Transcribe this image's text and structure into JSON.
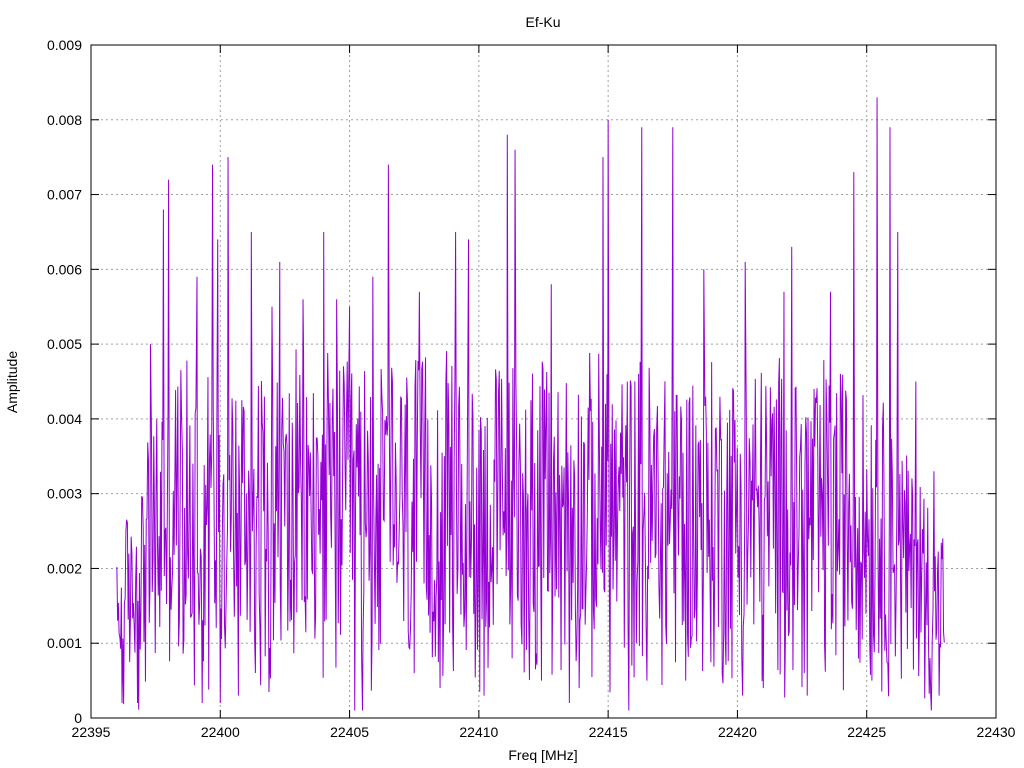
{
  "chart_data": {
    "type": "line",
    "title": "Ef-Ku",
    "xlabel": "Freq [MHz]",
    "ylabel": "Amplitude",
    "xlim": [
      22395,
      22430
    ],
    "ylim": [
      0,
      0.009
    ],
    "x_ticks": [
      "22395",
      "22400",
      "22405",
      "22410",
      "22415",
      "22420",
      "22425",
      "22430"
    ],
    "y_ticks": [
      "0",
      "0.001",
      "0.002",
      "0.003",
      "0.004",
      "0.005",
      "0.006",
      "0.007",
      "0.008",
      "0.009"
    ],
    "grid": true,
    "legend": "none",
    "line_color": "#9400d3",
    "x_start": 22396,
    "x_end": 22428,
    "num_points": 1100,
    "peaks": [
      {
        "x": 22397.3,
        "y": 0.005
      },
      {
        "x": 22397.8,
        "y": 0.0068
      },
      {
        "x": 22398.0,
        "y": 0.0072
      },
      {
        "x": 22399.1,
        "y": 0.0059
      },
      {
        "x": 22399.7,
        "y": 0.0074
      },
      {
        "x": 22399.9,
        "y": 0.0064
      },
      {
        "x": 22400.3,
        "y": 0.0075
      },
      {
        "x": 22401.2,
        "y": 0.0065
      },
      {
        "x": 22402.0,
        "y": 0.0055
      },
      {
        "x": 22402.3,
        "y": 0.0061
      },
      {
        "x": 22403.2,
        "y": 0.0056
      },
      {
        "x": 22404.0,
        "y": 0.0065
      },
      {
        "x": 22404.5,
        "y": 0.0056
      },
      {
        "x": 22405.0,
        "y": 0.0055
      },
      {
        "x": 22405.9,
        "y": 0.0059
      },
      {
        "x": 22406.5,
        "y": 0.0074
      },
      {
        "x": 22407.7,
        "y": 0.0057
      },
      {
        "x": 22409.1,
        "y": 0.0065
      },
      {
        "x": 22409.6,
        "y": 0.0064
      },
      {
        "x": 22411.1,
        "y": 0.0078
      },
      {
        "x": 22411.4,
        "y": 0.0076
      },
      {
        "x": 22412.8,
        "y": 0.0058
      },
      {
        "x": 22414.8,
        "y": 0.0075
      },
      {
        "x": 22415.0,
        "y": 0.008
      },
      {
        "x": 22416.3,
        "y": 0.0079
      },
      {
        "x": 22417.5,
        "y": 0.0079
      },
      {
        "x": 22418.7,
        "y": 0.006
      },
      {
        "x": 22420.3,
        "y": 0.0061
      },
      {
        "x": 22421.8,
        "y": 0.0057
      },
      {
        "x": 22422.1,
        "y": 0.0063
      },
      {
        "x": 22423.6,
        "y": 0.0057
      },
      {
        "x": 22424.5,
        "y": 0.0073
      },
      {
        "x": 22425.2,
        "y": 0.008
      },
      {
        "x": 22425.4,
        "y": 0.0083
      },
      {
        "x": 22425.9,
        "y": 0.0079
      },
      {
        "x": 22426.2,
        "y": 0.0065
      },
      {
        "x": 22426.9,
        "y": 0.0045
      },
      {
        "x": 22427.6,
        "y": 0.0033
      }
    ],
    "troughs": [
      {
        "x": 22396.2,
        "y": 0.0002
      },
      {
        "x": 22396.8,
        "y": 0.0002
      },
      {
        "x": 22399.3,
        "y": 0.0002
      },
      {
        "x": 22400.0,
        "y": 0.0002
      },
      {
        "x": 22400.7,
        "y": 0.0003
      },
      {
        "x": 22405.2,
        "y": 0.0001
      },
      {
        "x": 22405.5,
        "y": 0.0001
      },
      {
        "x": 22407.5,
        "y": 0.0006
      },
      {
        "x": 22408.5,
        "y": 0.0004
      },
      {
        "x": 22410.2,
        "y": 0.0003
      },
      {
        "x": 22413.5,
        "y": 0.0002
      },
      {
        "x": 22415.8,
        "y": 0.0001
      },
      {
        "x": 22416.5,
        "y": 0.0005
      },
      {
        "x": 22418.0,
        "y": 0.0005
      },
      {
        "x": 22420.2,
        "y": 0.0003
      },
      {
        "x": 22421.0,
        "y": 0.0004
      },
      {
        "x": 22422.7,
        "y": 0.0003
      },
      {
        "x": 22425.2,
        "y": 0.0005
      },
      {
        "x": 22427.5,
        "y": 0.0001
      },
      {
        "x": 22427.8,
        "y": 0.0003
      }
    ]
  }
}
